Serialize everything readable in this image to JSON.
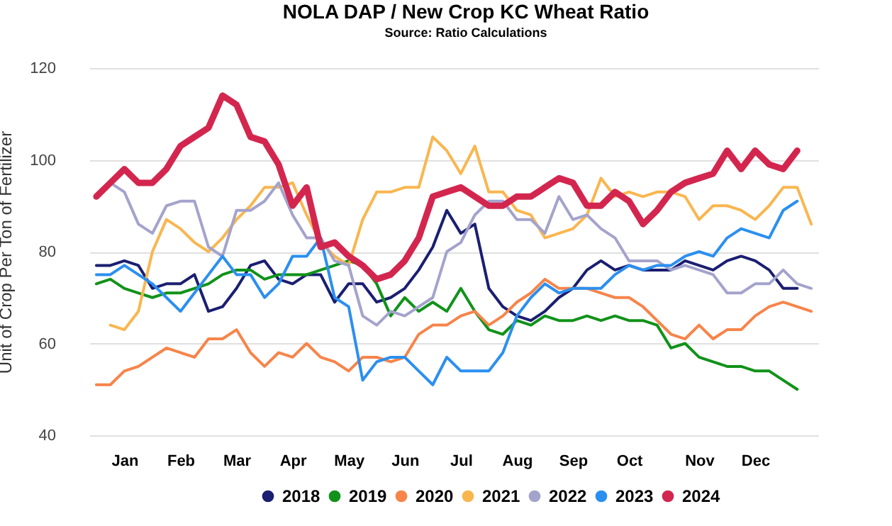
{
  "chart_data": {
    "type": "line",
    "title": "NOLA DAP / New Crop KC Wheat Ratio",
    "subtitle": "Source: Ratio Calculations",
    "ylabel": "Unit of Crop Per Ton of Fertilizer",
    "categories": [
      null,
      null,
      "Jan",
      null,
      null,
      null,
      "Feb",
      null,
      null,
      null,
      "Mar",
      null,
      null,
      null,
      "Apr",
      null,
      null,
      null,
      "May",
      null,
      null,
      null,
      "Jun",
      null,
      null,
      null,
      "Jul",
      null,
      null,
      null,
      "Aug",
      null,
      null,
      null,
      "Sep",
      null,
      null,
      null,
      "Oct",
      null,
      null,
      null,
      null,
      "Nov",
      null,
      null,
      null,
      "Dec",
      null,
      null,
      null,
      null
    ],
    "ylim": [
      40,
      120
    ],
    "yticks": [
      40,
      60,
      80,
      100,
      120
    ],
    "grid": "y",
    "legend": "bottom",
    "series": [
      {
        "name": "2018",
        "color": "#1a1f71",
        "values": [
          77,
          77,
          78,
          77,
          72,
          73,
          73,
          75,
          67,
          68,
          72,
          77,
          78,
          74,
          73,
          75,
          75,
          69,
          73,
          73,
          69,
          70,
          72,
          76,
          81,
          89,
          84,
          86,
          72,
          68,
          66,
          65,
          67,
          70,
          72,
          76,
          78,
          76,
          77,
          76,
          76,
          76,
          78,
          77,
          76,
          78,
          79,
          78,
          76,
          72,
          72,
          null
        ]
      },
      {
        "name": "2019",
        "color": "#11921a",
        "values": [
          73,
          74,
          72,
          71,
          70,
          71,
          71,
          72,
          73,
          75,
          76,
          76,
          74,
          75,
          75,
          75,
          76,
          77,
          78,
          77,
          73,
          66,
          70,
          67,
          69,
          67,
          72,
          67,
          63,
          62,
          65,
          64,
          66,
          65,
          65,
          66,
          65,
          66,
          65,
          65,
          64,
          59,
          60,
          57,
          56,
          55,
          55,
          54,
          54,
          52,
          50,
          null
        ]
      },
      {
        "name": "2020",
        "color": "#f7844a",
        "values": [
          51,
          51,
          54,
          55,
          57,
          59,
          58,
          57,
          61,
          61,
          63,
          58,
          55,
          58,
          57,
          60,
          57,
          56,
          54,
          57,
          57,
          56,
          57,
          62,
          64,
          64,
          66,
          67,
          64,
          66,
          69,
          71,
          74,
          72,
          72,
          72,
          71,
          70,
          70,
          68,
          65,
          62,
          61,
          64,
          61,
          63,
          63,
          66,
          68,
          69,
          68,
          67
        ]
      },
      {
        "name": "2021",
        "color": "#f9b64f",
        "values": [
          null,
          64,
          63,
          67,
          80,
          87,
          85,
          82,
          80,
          83,
          87,
          90,
          94,
          94,
          95,
          88,
          82,
          79,
          77,
          87,
          93,
          93,
          94,
          94,
          105,
          102,
          97,
          103,
          93,
          93,
          89,
          88,
          83,
          84,
          85,
          88,
          96,
          92,
          93,
          92,
          93,
          93,
          92,
          87,
          90,
          90,
          89,
          87,
          90,
          94,
          94,
          86
        ]
      },
      {
        "name": "2022",
        "color": "#a3a3cc",
        "values": [
          null,
          95,
          93,
          86,
          84,
          90,
          91,
          91,
          81,
          79,
          89,
          89,
          91,
          95,
          88,
          83,
          83,
          78,
          77,
          66,
          64,
          67,
          66,
          68,
          70,
          80,
          82,
          88,
          91,
          91,
          87,
          87,
          84,
          92,
          87,
          88,
          85,
          83,
          78,
          78,
          78,
          76,
          77,
          76,
          75,
          71,
          71,
          73,
          73,
          76,
          73,
          72
        ]
      },
      {
        "name": "2023",
        "color": "#2b8ff0",
        "values": [
          75,
          75,
          77,
          75,
          73,
          70,
          67,
          71,
          75,
          79,
          75,
          75,
          70,
          73,
          79,
          79,
          83,
          70,
          68,
          52,
          56,
          57,
          57,
          54,
          51,
          57,
          54,
          54,
          54,
          58,
          66,
          70,
          73,
          71,
          72,
          72,
          72,
          75,
          77,
          76,
          77,
          77,
          79,
          80,
          79,
          83,
          85,
          84,
          83,
          89,
          91,
          null
        ]
      },
      {
        "name": "2024",
        "color": "#d3264f",
        "values": [
          92,
          95,
          98,
          95,
          95,
          98,
          103,
          105,
          107,
          114,
          112,
          105,
          104,
          99,
          90,
          94,
          81,
          82,
          79,
          77,
          74,
          75,
          78,
          83,
          92,
          93,
          94,
          92,
          90,
          90,
          92,
          92,
          94,
          96,
          95,
          90,
          90,
          93,
          91,
          86,
          89,
          93,
          95,
          96,
          97,
          102,
          98,
          102,
          99,
          98,
          102,
          null
        ]
      }
    ]
  }
}
